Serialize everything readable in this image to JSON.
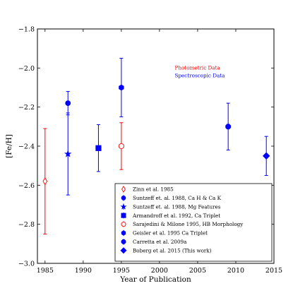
{
  "chart_data": {
    "type": "scatter",
    "xlabel": "Year of Publication",
    "ylabel": "[Fe/H]",
    "xlim": [
      1984,
      2015
    ],
    "ylim": [
      -3.0,
      -1.8
    ],
    "xticks": [
      1985,
      1990,
      1995,
      2000,
      2005,
      2010,
      2015
    ],
    "yticks": [
      -3.0,
      -2.8,
      -2.6,
      -2.4,
      -2.2,
      -2.0,
      -1.8
    ],
    "grid": false,
    "legend_position": "lower-right",
    "annotations": [
      {
        "text": "Photometric Data",
        "x": 2002,
        "y": -2.0,
        "color": "#ff0000"
      },
      {
        "text": "Spectroscopic Data",
        "x": 2002,
        "y": -2.04,
        "color": "#0000ff"
      }
    ],
    "series": [
      {
        "name": "Zinn et al. 1985",
        "marker": "thin-diamond-open",
        "color": "#ff0000",
        "points": [
          {
            "x": 1985,
            "y": -2.58,
            "err": 0.27
          }
        ]
      },
      {
        "name": "Suntzeff et. al. 1988, Ca H & Ca K",
        "marker": "circle",
        "color": "#0000ff",
        "points": [
          {
            "x": 1988,
            "y": -2.18,
            "err": 0.06
          }
        ]
      },
      {
        "name": "Suntzeff et. al. 1988, Mg Features",
        "marker": "star",
        "color": "#0000ff",
        "points": [
          {
            "x": 1988,
            "y": -2.44,
            "err": 0.21
          }
        ]
      },
      {
        "name": "Armandroff et al. 1992, Ca Triplet",
        "marker": "square",
        "color": "#0000ff",
        "points": [
          {
            "x": 1992,
            "y": -2.41,
            "err": 0.12
          }
        ]
      },
      {
        "name": "Sarajedini & Milone 1995, HB Morphology",
        "marker": "circle-open",
        "color": "#ff0000",
        "points": [
          {
            "x": 1995,
            "y": -2.4,
            "err": 0.12
          }
        ]
      },
      {
        "name": "Geisler et al. 1995 Ca Triplet",
        "marker": "hexagon",
        "color": "#0000ff",
        "points": [
          {
            "x": 1995,
            "y": -2.1,
            "err": 0.15
          }
        ]
      },
      {
        "name": "Carretta et al. 2009a",
        "marker": "octagon",
        "color": "#0000ff",
        "points": [
          {
            "x": 2009,
            "y": -2.3,
            "err": 0.12
          }
        ]
      },
      {
        "name": "Boberg et al. 2015 (This work)",
        "marker": "diamond",
        "color": "#0000ff",
        "points": [
          {
            "x": 2014,
            "y": -2.45,
            "err": 0.1
          }
        ]
      }
    ]
  }
}
